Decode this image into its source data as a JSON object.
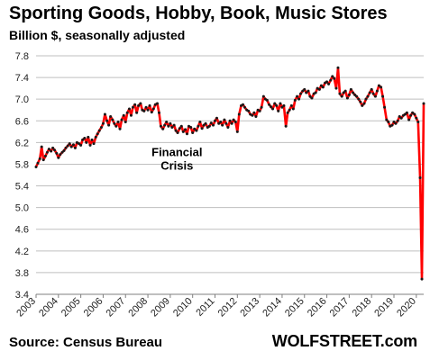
{
  "header": {
    "title": "Sporting Goods, Hobby, Book, Music Stores",
    "subtitle": "Billion $, seasonally adjusted"
  },
  "footer": {
    "source": "Source: Census Bureau",
    "brand": "WOLFSTREET.com"
  },
  "colors": {
    "line": "#ff0000",
    "marker": "#1a1a1a",
    "gridline": "#bfbfbf",
    "axis": "#7f7f7f"
  },
  "chart_data": {
    "type": "line",
    "title": "Sporting Goods, Hobby, Book, Music Stores",
    "subtitle": "Billion $, seasonally adjusted",
    "xlabel": "",
    "ylabel": "",
    "ylim": [
      3.4,
      7.8
    ],
    "yticks": [
      "3.4",
      "3.8",
      "4.2",
      "4.6",
      "5.0",
      "5.4",
      "5.8",
      "6.2",
      "6.6",
      "7.0",
      "7.4",
      "7.8"
    ],
    "xticks": [
      "2003",
      "2004",
      "2005",
      "2006",
      "2007",
      "2008",
      "2009",
      "2010",
      "2011",
      "2012",
      "2013",
      "2014",
      "2015",
      "2016",
      "2017",
      "2018",
      "2019",
      "2020"
    ],
    "xlim": [
      2003,
      2020.33
    ],
    "grid": "horizontal",
    "legend": "none",
    "annotations": [
      {
        "text": "Financial",
        "x": 2009.3,
        "y": 5.95
      },
      {
        "text": "Crisis",
        "x": 2009.3,
        "y": 5.7
      }
    ],
    "series": [
      {
        "marker": "dots",
        "x": [
          2003.0,
          2003.08,
          2003.17,
          2003.25,
          2003.33,
          2003.42,
          2003.5,
          2003.58,
          2003.67,
          2003.75,
          2003.83,
          2003.92,
          2004.0,
          2004.08,
          2004.17,
          2004.25,
          2004.33,
          2004.42,
          2004.5,
          2004.58,
          2004.67,
          2004.75,
          2004.83,
          2004.92,
          2005.0,
          2005.08,
          2005.17,
          2005.25,
          2005.33,
          2005.42,
          2005.5,
          2005.58,
          2005.67,
          2005.75,
          2005.83,
          2005.92,
          2006.0,
          2006.08,
          2006.17,
          2006.25,
          2006.33,
          2006.42,
          2006.5,
          2006.58,
          2006.67,
          2006.75,
          2006.83,
          2006.92,
          2007.0,
          2007.08,
          2007.17,
          2007.25,
          2007.33,
          2007.42,
          2007.5,
          2007.58,
          2007.67,
          2007.75,
          2007.83,
          2007.92,
          2008.0,
          2008.08,
          2008.17,
          2008.25,
          2008.33,
          2008.42,
          2008.5,
          2008.58,
          2008.67,
          2008.75,
          2008.83,
          2008.92,
          2009.0,
          2009.08,
          2009.17,
          2009.25,
          2009.33,
          2009.42,
          2009.5,
          2009.58,
          2009.67,
          2009.75,
          2009.83,
          2009.92,
          2010.0,
          2010.08,
          2010.17,
          2010.25,
          2010.33,
          2010.42,
          2010.5,
          2010.58,
          2010.67,
          2010.75,
          2010.83,
          2010.92,
          2011.0,
          2011.08,
          2011.17,
          2011.25,
          2011.33,
          2011.42,
          2011.5,
          2011.58,
          2011.67,
          2011.75,
          2011.83,
          2011.92,
          2012.0,
          2012.08,
          2012.17,
          2012.25,
          2012.33,
          2012.42,
          2012.5,
          2012.58,
          2012.67,
          2012.75,
          2012.83,
          2012.92,
          2013.0,
          2013.08,
          2013.17,
          2013.25,
          2013.33,
          2013.42,
          2013.5,
          2013.58,
          2013.67,
          2013.75,
          2013.83,
          2013.92,
          2014.0,
          2014.08,
          2014.17,
          2014.25,
          2014.33,
          2014.42,
          2014.5,
          2014.58,
          2014.67,
          2014.75,
          2014.83,
          2014.92,
          2015.0,
          2015.08,
          2015.17,
          2015.25,
          2015.33,
          2015.42,
          2015.5,
          2015.58,
          2015.67,
          2015.75,
          2015.83,
          2015.92,
          2016.0,
          2016.08,
          2016.17,
          2016.25,
          2016.33,
          2016.42,
          2016.5,
          2016.58,
          2016.67,
          2016.75,
          2016.83,
          2016.92,
          2017.0,
          2017.08,
          2017.17,
          2017.25,
          2017.33,
          2017.42,
          2017.5,
          2017.58,
          2017.67,
          2017.75,
          2017.83,
          2017.92,
          2018.0,
          2018.08,
          2018.17,
          2018.25,
          2018.33,
          2018.42,
          2018.5,
          2018.58,
          2018.67,
          2018.75,
          2018.83,
          2018.92,
          2019.0,
          2019.08,
          2019.17,
          2019.25,
          2019.33,
          2019.42,
          2019.5,
          2019.58,
          2019.67,
          2019.75,
          2019.83,
          2019.92,
          2020.0,
          2020.08,
          2020.17,
          2020.25,
          2020.33
        ],
        "values": [
          5.75,
          5.82,
          5.9,
          6.12,
          5.88,
          5.95,
          6.02,
          6.08,
          6.04,
          6.1,
          6.06,
          6.0,
          5.92,
          5.98,
          6.02,
          6.05,
          6.1,
          6.14,
          6.18,
          6.12,
          6.16,
          6.1,
          6.2,
          6.18,
          6.15,
          6.25,
          6.28,
          6.2,
          6.3,
          6.15,
          6.25,
          6.18,
          6.3,
          6.36,
          6.42,
          6.48,
          6.55,
          6.72,
          6.6,
          6.52,
          6.68,
          6.62,
          6.55,
          6.5,
          6.58,
          6.45,
          6.62,
          6.7,
          6.58,
          6.75,
          6.82,
          6.7,
          6.85,
          6.9,
          6.75,
          6.88,
          6.92,
          6.8,
          6.78,
          6.85,
          6.8,
          6.88,
          6.76,
          6.82,
          6.9,
          6.92,
          6.75,
          6.5,
          6.45,
          6.52,
          6.58,
          6.5,
          6.55,
          6.48,
          6.52,
          6.42,
          6.38,
          6.46,
          6.5,
          6.4,
          6.44,
          6.36,
          6.5,
          6.48,
          6.38,
          6.45,
          6.42,
          6.5,
          6.58,
          6.46,
          6.52,
          6.55,
          6.48,
          6.5,
          6.56,
          6.52,
          6.6,
          6.65,
          6.55,
          6.58,
          6.52,
          6.62,
          6.55,
          6.48,
          6.6,
          6.55,
          6.62,
          6.58,
          6.4,
          6.72,
          6.88,
          6.9,
          6.85,
          6.8,
          6.78,
          6.72,
          6.7,
          6.75,
          6.68,
          6.8,
          6.78,
          6.85,
          7.05,
          7.0,
          6.98,
          6.9,
          6.86,
          6.82,
          6.92,
          6.88,
          6.78,
          6.92,
          6.85,
          6.88,
          6.5,
          6.75,
          6.8,
          6.88,
          6.82,
          6.98,
          7.05,
          7.0,
          7.1,
          7.15,
          7.18,
          7.12,
          7.15,
          7.05,
          7.02,
          7.1,
          7.12,
          7.2,
          7.18,
          7.25,
          7.22,
          7.3,
          7.32,
          7.28,
          7.35,
          7.42,
          7.38,
          7.2,
          7.58,
          7.1,
          7.05,
          7.12,
          7.15,
          7.02,
          7.08,
          7.18,
          7.12,
          7.08,
          7.05,
          7.0,
          6.95,
          6.88,
          6.92,
          7.0,
          7.05,
          7.12,
          7.18,
          7.1,
          7.05,
          7.15,
          7.25,
          7.22,
          7.05,
          6.85,
          6.62,
          6.58,
          6.5,
          6.52,
          6.58,
          6.55,
          6.6,
          6.68,
          6.65,
          6.7,
          6.72,
          6.75,
          6.62,
          6.7,
          6.75,
          6.72,
          6.65,
          6.58,
          5.55,
          3.68,
          6.92
        ]
      }
    ]
  }
}
